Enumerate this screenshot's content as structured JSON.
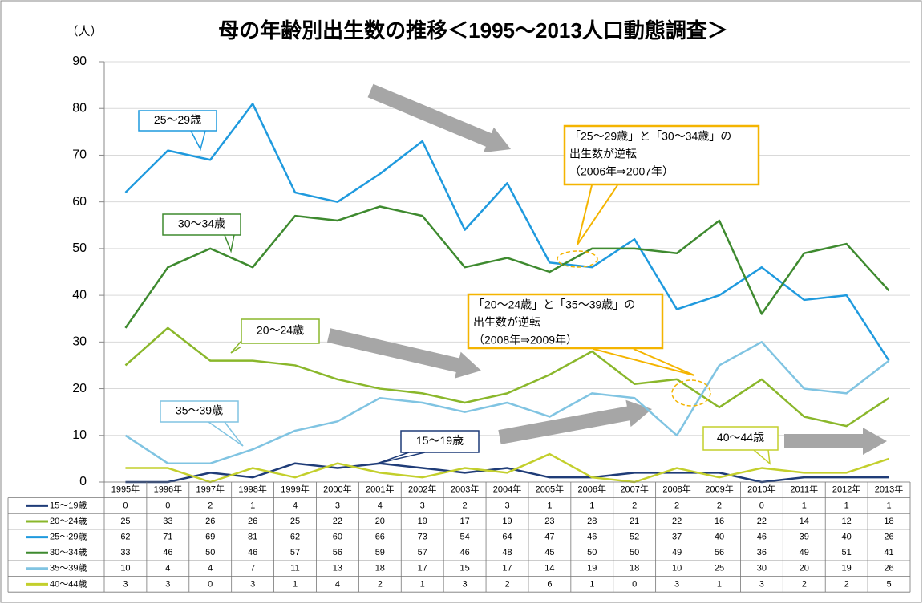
{
  "chart_data": {
    "type": "line",
    "title": "母の年齢別出生数の推移＜1995～2013人口動態調査＞",
    "y_label": "（人）",
    "categories": [
      "1995年",
      "1996年",
      "1997年",
      "1998年",
      "1999年",
      "2000年",
      "2001年",
      "2002年",
      "2003年",
      "2004年",
      "2005年",
      "2006年",
      "2007年",
      "2008年",
      "2009年",
      "2010年",
      "2011年",
      "2012年",
      "2013年"
    ],
    "series": [
      {
        "name": "15～19歳",
        "color": "#1f3c78",
        "values": [
          0,
          0,
          2,
          1,
          4,
          3,
          4,
          3,
          2,
          3,
          1,
          1,
          2,
          2,
          2,
          0,
          1,
          1,
          1
        ]
      },
      {
        "name": "20～24歳",
        "color": "#8ab72b",
        "values": [
          25,
          33,
          26,
          26,
          25,
          22,
          20,
          19,
          17,
          19,
          23,
          28,
          21,
          22,
          16,
          22,
          14,
          12,
          18
        ]
      },
      {
        "name": "25～29歳",
        "color": "#1f9ade",
        "values": [
          62,
          71,
          69,
          81,
          62,
          60,
          66,
          73,
          54,
          64,
          47,
          46,
          52,
          37,
          40,
          46,
          39,
          40,
          26
        ]
      },
      {
        "name": "30～34歳",
        "color": "#3e8a2f",
        "values": [
          33,
          46,
          50,
          46,
          57,
          56,
          59,
          57,
          46,
          48,
          45,
          50,
          50,
          49,
          56,
          36,
          49,
          51,
          41
        ]
      },
      {
        "name": "35～39歳",
        "color": "#80c4e2",
        "values": [
          10,
          4,
          4,
          7,
          11,
          13,
          18,
          17,
          15,
          17,
          14,
          19,
          18,
          10,
          25,
          30,
          20,
          19,
          26
        ]
      },
      {
        "name": "40～44歳",
        "color": "#c3cf2c",
        "values": [
          3,
          3,
          0,
          3,
          1,
          4,
          2,
          1,
          3,
          2,
          6,
          1,
          0,
          3,
          1,
          3,
          2,
          2,
          5
        ]
      }
    ],
    "ylim": [
      0,
      90
    ],
    "yticks": [
      0,
      10,
      20,
      30,
      40,
      50,
      60,
      70,
      80,
      90
    ],
    "grid": true,
    "data_table": true,
    "annotations": [
      {
        "lines": [
          "「25～29歳」と「30～34歳」の",
          "出生数が逆転",
          "（2006年⇒2007年）"
        ]
      },
      {
        "lines": [
          "「20～24歳」と「35～39歳」の",
          "出生数が逆転",
          "（2008年⇒2009年）"
        ]
      }
    ]
  }
}
